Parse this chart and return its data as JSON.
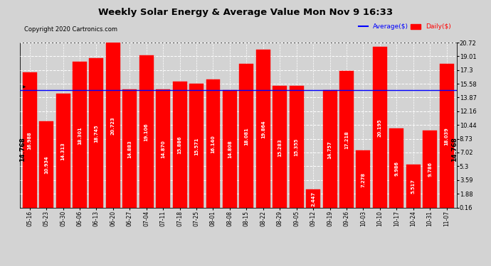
{
  "title": "Weekly Solar Energy & Average Value Mon Nov 9 16:33",
  "copyright": "Copyright 2020 Cartronics.com",
  "categories": [
    "05-16",
    "05-23",
    "05-30",
    "06-06",
    "06-13",
    "06-20",
    "06-27",
    "07-04",
    "07-11",
    "07-18",
    "07-25",
    "08-01",
    "08-08",
    "08-15",
    "08-22",
    "08-29",
    "09-05",
    "09-12",
    "09-19",
    "09-26",
    "10-03",
    "10-10",
    "10-17",
    "10-24",
    "10-31",
    "11-07"
  ],
  "values": [
    16.988,
    10.934,
    14.313,
    18.301,
    18.745,
    20.723,
    14.883,
    19.106,
    14.87,
    15.886,
    15.571,
    16.14,
    14.808,
    18.081,
    19.864,
    15.283,
    15.355,
    2.447,
    14.757,
    17.218,
    7.278,
    20.195,
    9.986,
    5.517,
    9.786,
    18.039
  ],
  "bar_color": "#ff0000",
  "average_line": 14.768,
  "average_label": "14.768",
  "yticks": [
    0.16,
    1.88,
    3.59,
    5.3,
    7.02,
    8.73,
    10.44,
    12.16,
    13.87,
    15.58,
    17.3,
    19.01,
    20.72
  ],
  "ymin": 0.16,
  "ymax": 20.72,
  "average_color": "#0000ff",
  "legend_avg_label": "Average($)",
  "legend_daily_label": "Daily($)",
  "bg_color": "#d3d3d3",
  "plot_bg_color": "#d3d3d3",
  "bar_edge_color": "#ff0000",
  "grid_color": "white",
  "value_label_color": "white",
  "value_label_fontsize": 4.8,
  "avg_label_fontsize": 6.5,
  "avg_label_color": "black",
  "title_fontsize": 9.5,
  "copyright_fontsize": 6.0,
  "tick_fontsize": 5.5,
  "ytick_fontsize": 6.0
}
